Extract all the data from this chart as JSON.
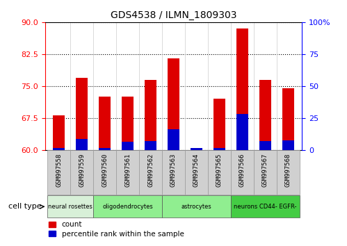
{
  "title": "GDS4538 / ILMN_1809303",
  "samples": [
    "GSM997558",
    "GSM997559",
    "GSM997560",
    "GSM997561",
    "GSM997562",
    "GSM997563",
    "GSM997564",
    "GSM997565",
    "GSM997566",
    "GSM997567",
    "GSM997568"
  ],
  "count_values": [
    68.2,
    77.0,
    72.5,
    72.5,
    76.5,
    81.5,
    60.5,
    72.0,
    88.5,
    76.5,
    74.5
  ],
  "percentile_values": [
    1.5,
    8.5,
    1.5,
    6.5,
    7.0,
    16.0,
    1.5,
    1.5,
    28.0,
    7.0,
    7.5
  ],
  "ymin": 60,
  "ymax": 90,
  "y2min": 0,
  "y2max": 100,
  "yticks_left": [
    60,
    67.5,
    75,
    82.5,
    90
  ],
  "yticks_right": [
    0,
    25,
    50,
    75,
    100
  ],
  "bar_color_red": "#dd0000",
  "bar_color_blue": "#0000cc",
  "cell_type_groups": [
    {
      "label": "neural rosettes",
      "start": 0,
      "end": 2,
      "color": "#d8f0d8"
    },
    {
      "label": "oligodendrocytes",
      "start": 2,
      "end": 5,
      "color": "#90ee90"
    },
    {
      "label": "astrocytes",
      "start": 5,
      "end": 8,
      "color": "#90ee90"
    },
    {
      "label": "neurons CD44- EGFR-",
      "start": 8,
      "end": 11,
      "color": "#44cc44"
    }
  ],
  "legend_count_label": "count",
  "legend_pct_label": "percentile rank within the sample",
  "cell_type_label": "cell type",
  "bar_width": 0.5,
  "tick_bg_color": "#d0d0d0",
  "tick_border_color": "#999999"
}
